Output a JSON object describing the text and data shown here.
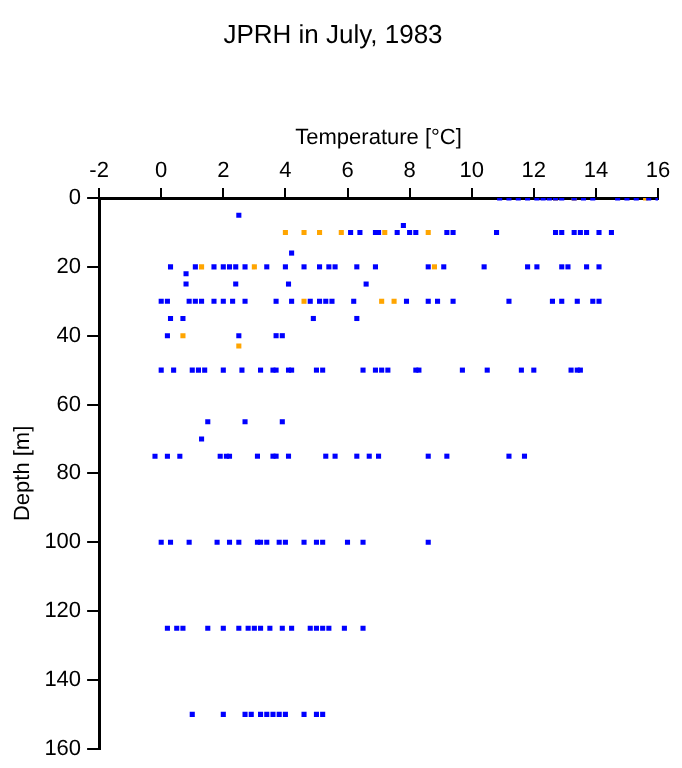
{
  "chart_data": {
    "type": "scatter",
    "title": "JPRH in July, 1983",
    "xlabel": "Temperature [°C]",
    "ylabel": "Depth [m]",
    "xlim": [
      -2,
      16
    ],
    "xticks": [
      -2,
      0,
      2,
      4,
      6,
      8,
      10,
      12,
      14,
      16
    ],
    "ylim": [
      160,
      0
    ],
    "yticks": [
      0,
      20,
      40,
      60,
      80,
      100,
      120,
      140,
      160
    ],
    "grid": false,
    "legend": false,
    "marker": "square",
    "series": [
      {
        "color": "#0000ff",
        "x": [
          10.9,
          11.2,
          11.5,
          11.8,
          12.1,
          12.3,
          12.5,
          12.7,
          12.9,
          13.3,
          13.6,
          13.9,
          14.7,
          15.0,
          15.3,
          15.7,
          16.0,
          2.5,
          7.8,
          6.1,
          6.4,
          6.9,
          7.0,
          7.6,
          8.0,
          8.2,
          9.2,
          9.4,
          10.8,
          12.7,
          12.9,
          13.3,
          13.5,
          13.7,
          14.1,
          14.5,
          4.2,
          0.3,
          1.1,
          1.7,
          2.0,
          2.2,
          2.4,
          2.7,
          3.4,
          4.0,
          4.6,
          5.1,
          5.4,
          5.6,
          6.3,
          6.9,
          8.6,
          9.1,
          10.4,
          11.8,
          12.1,
          12.9,
          13.1,
          13.7,
          14.1,
          0.8,
          0.8,
          2.4,
          4.1,
          6.6,
          0.0,
          0.2,
          0.9,
          1.1,
          1.3,
          1.7,
          2.0,
          2.3,
          2.7,
          3.7,
          4.2,
          4.8,
          5.1,
          5.3,
          5.5,
          6.2,
          7.9,
          8.6,
          8.9,
          9.4,
          11.2,
          12.6,
          12.9,
          13.4,
          13.9,
          14.1,
          0.3,
          0.7,
          4.9,
          6.3,
          0.2,
          2.5,
          3.7,
          3.9,
          0.0,
          0.4,
          1.0,
          1.2,
          1.4,
          2.0,
          2.6,
          3.2,
          3.6,
          3.7,
          4.1,
          4.2,
          5.0,
          5.2,
          6.5,
          6.9,
          7.1,
          7.3,
          8.2,
          8.3,
          9.7,
          10.5,
          11.6,
          12.0,
          13.2,
          13.4,
          13.5,
          1.5,
          2.7,
          3.9,
          1.3,
          -0.2,
          0.2,
          0.6,
          1.9,
          2.1,
          2.2,
          3.1,
          3.6,
          3.7,
          4.1,
          5.3,
          5.6,
          6.3,
          6.7,
          7.0,
          8.6,
          9.2,
          11.2,
          11.7,
          0.0,
          0.3,
          0.9,
          1.8,
          2.2,
          2.5,
          3.1,
          3.2,
          3.4,
          3.8,
          4.0,
          4.6,
          5.0,
          5.2,
          6.0,
          6.5,
          8.6,
          0.2,
          0.5,
          0.7,
          1.5,
          2.0,
          2.5,
          2.8,
          3.0,
          3.2,
          3.5,
          3.9,
          4.2,
          4.8,
          5.0,
          5.2,
          5.4,
          5.9,
          6.5,
          1.0,
          2.0,
          2.7,
          2.9,
          3.2,
          3.4,
          3.6,
          3.8,
          4.0,
          4.6,
          5.0,
          5.2
        ],
        "values": [
          0,
          0,
          0,
          0,
          0,
          0,
          0,
          0,
          0,
          0,
          0,
          0,
          0,
          0,
          0,
          0,
          0,
          5,
          8,
          10,
          10,
          10,
          10,
          10,
          10,
          10,
          10,
          10,
          10,
          10,
          10,
          10,
          10,
          10,
          10,
          10,
          16,
          20,
          20,
          20,
          20,
          20,
          20,
          20,
          20,
          20,
          20,
          20,
          20,
          20,
          20,
          20,
          20,
          20,
          20,
          20,
          20,
          20,
          20,
          20,
          20,
          22,
          25,
          25,
          25,
          25,
          30,
          30,
          30,
          30,
          30,
          30,
          30,
          30,
          30,
          30,
          30,
          30,
          30,
          30,
          30,
          30,
          30,
          30,
          30,
          30,
          30,
          30,
          30,
          30,
          30,
          30,
          35,
          35,
          35,
          35,
          40,
          40,
          40,
          40,
          50,
          50,
          50,
          50,
          50,
          50,
          50,
          50,
          50,
          50,
          50,
          50,
          50,
          50,
          50,
          50,
          50,
          50,
          50,
          50,
          50,
          50,
          50,
          50,
          50,
          50,
          50,
          65,
          65,
          65,
          70,
          75,
          75,
          75,
          75,
          75,
          75,
          75,
          75,
          75,
          75,
          75,
          75,
          75,
          75,
          75,
          75,
          75,
          75,
          75,
          100,
          100,
          100,
          100,
          100,
          100,
          100,
          100,
          100,
          100,
          100,
          100,
          100,
          100,
          100,
          100,
          100,
          125,
          125,
          125,
          125,
          125,
          125,
          125,
          125,
          125,
          125,
          125,
          125,
          125,
          125,
          125,
          125,
          125,
          125,
          150,
          150,
          150,
          150,
          150,
          150,
          150,
          150,
          150,
          150,
          150,
          150
        ]
      },
      {
        "color": "#ffa500",
        "x": [
          12.7,
          13.3,
          15.6,
          4.0,
          4.6,
          5.1,
          5.8,
          7.2,
          8.6,
          1.3,
          3.0,
          8.8,
          4.6,
          7.1,
          7.5,
          0.7,
          2.5
        ],
        "values": [
          0,
          0,
          0,
          10,
          10,
          10,
          10,
          10,
          10,
          20,
          20,
          20,
          30,
          30,
          30,
          40,
          43
        ]
      }
    ]
  }
}
